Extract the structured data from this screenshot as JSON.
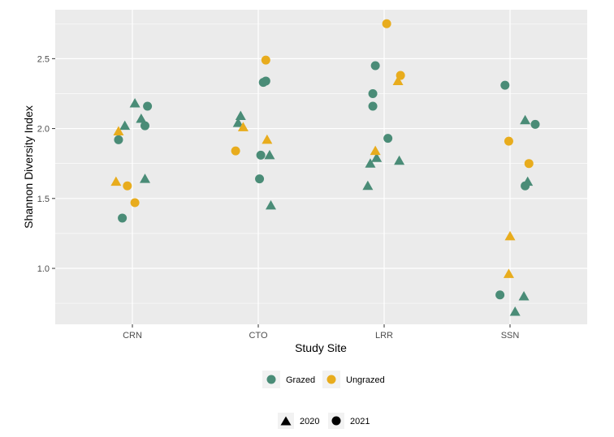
{
  "chart_data": {
    "type": "scatter",
    "title": "",
    "xlabel": "Study Site",
    "ylabel": "Shannon Diversity Index",
    "categories": [
      "CRN",
      "CTO",
      "LRR",
      "SSN"
    ],
    "ylim": [
      0.6,
      2.85
    ],
    "yticks": [
      "1.0",
      "1.5",
      "2.0",
      "2.5"
    ],
    "ytick_values": [
      1.0,
      1.5,
      2.0,
      2.5
    ],
    "grid": true,
    "legend": {
      "placement": "bottom",
      "color_entries": [
        {
          "label": "Grazed",
          "color": "#4a8c77"
        },
        {
          "label": "Ungrazed",
          "color": "#e8ac1d"
        }
      ],
      "shape_entries": [
        {
          "label": "2020",
          "shape": "triangle"
        },
        {
          "label": "2021",
          "shape": "circle"
        }
      ]
    },
    "series": [
      {
        "name": "Grazed",
        "year": "2020",
        "shape": "triangle",
        "color": "#4a8c77",
        "points": [
          {
            "site": "CRN",
            "jitter": 0.02,
            "y": 2.18
          },
          {
            "site": "CRN",
            "jitter": -0.06,
            "y": 2.02
          },
          {
            "site": "CRN",
            "jitter": 0.07,
            "y": 2.07
          },
          {
            "site": "CRN",
            "jitter": 0.1,
            "y": 1.64
          },
          {
            "site": "CTO",
            "jitter": -0.14,
            "y": 2.09
          },
          {
            "site": "CTO",
            "jitter": -0.16,
            "y": 2.04
          },
          {
            "site": "CTO",
            "jitter": 0.09,
            "y": 1.81
          },
          {
            "site": "CTO",
            "jitter": 0.1,
            "y": 1.45
          },
          {
            "site": "LRR",
            "jitter": -0.06,
            "y": 1.79
          },
          {
            "site": "LRR",
            "jitter": -0.11,
            "y": 1.75
          },
          {
            "site": "LRR",
            "jitter": -0.13,
            "y": 1.59
          },
          {
            "site": "LRR",
            "jitter": 0.12,
            "y": 1.77
          },
          {
            "site": "SSN",
            "jitter": 0.12,
            "y": 2.06
          },
          {
            "site": "SSN",
            "jitter": 0.14,
            "y": 1.62
          },
          {
            "site": "SSN",
            "jitter": 0.11,
            "y": 0.8
          },
          {
            "site": "SSN",
            "jitter": 0.04,
            "y": 0.69
          }
        ]
      },
      {
        "name": "Grazed",
        "year": "2021",
        "shape": "circle",
        "color": "#4a8c77",
        "points": [
          {
            "site": "CRN",
            "jitter": -0.11,
            "y": 1.92
          },
          {
            "site": "CRN",
            "jitter": 0.12,
            "y": 2.16
          },
          {
            "site": "CRN",
            "jitter": 0.1,
            "y": 2.02
          },
          {
            "site": "CRN",
            "jitter": -0.08,
            "y": 1.36
          },
          {
            "site": "CTO",
            "jitter": 0.04,
            "y": 2.33
          },
          {
            "site": "CTO",
            "jitter": 0.06,
            "y": 2.34
          },
          {
            "site": "CTO",
            "jitter": 0.02,
            "y": 1.81
          },
          {
            "site": "CTO",
            "jitter": 0.01,
            "y": 1.64
          },
          {
            "site": "LRR",
            "jitter": -0.07,
            "y": 2.45
          },
          {
            "site": "LRR",
            "jitter": -0.09,
            "y": 2.25
          },
          {
            "site": "LRR",
            "jitter": -0.09,
            "y": 2.16
          },
          {
            "site": "LRR",
            "jitter": 0.03,
            "y": 1.93
          },
          {
            "site": "SSN",
            "jitter": -0.04,
            "y": 2.31
          },
          {
            "site": "SSN",
            "jitter": 0.2,
            "y": 2.03
          },
          {
            "site": "SSN",
            "jitter": 0.12,
            "y": 1.59
          },
          {
            "site": "SSN",
            "jitter": -0.08,
            "y": 0.81
          }
        ]
      },
      {
        "name": "Ungrazed",
        "year": "2020",
        "shape": "triangle",
        "color": "#e8ac1d",
        "points": [
          {
            "site": "CRN",
            "jitter": -0.11,
            "y": 1.98
          },
          {
            "site": "CRN",
            "jitter": -0.13,
            "y": 1.62
          },
          {
            "site": "CTO",
            "jitter": -0.12,
            "y": 2.01
          },
          {
            "site": "CTO",
            "jitter": 0.07,
            "y": 1.92
          },
          {
            "site": "LRR",
            "jitter": -0.07,
            "y": 1.84
          },
          {
            "site": "LRR",
            "jitter": 0.11,
            "y": 2.34
          },
          {
            "site": "SSN",
            "jitter": 0.0,
            "y": 1.23
          },
          {
            "site": "SSN",
            "jitter": -0.01,
            "y": 0.96
          }
        ]
      },
      {
        "name": "Ungrazed",
        "year": "2021",
        "shape": "circle",
        "color": "#e8ac1d",
        "points": [
          {
            "site": "CRN",
            "jitter": -0.04,
            "y": 1.59
          },
          {
            "site": "CRN",
            "jitter": 0.02,
            "y": 1.47
          },
          {
            "site": "CTO",
            "jitter": 0.06,
            "y": 2.49
          },
          {
            "site": "CTO",
            "jitter": -0.18,
            "y": 1.84
          },
          {
            "site": "LRR",
            "jitter": 0.02,
            "y": 2.75
          },
          {
            "site": "LRR",
            "jitter": 0.13,
            "y": 2.38
          },
          {
            "site": "SSN",
            "jitter": -0.01,
            "y": 1.91
          },
          {
            "site": "SSN",
            "jitter": 0.15,
            "y": 1.75
          }
        ]
      }
    ]
  },
  "theme": {
    "panel_bg": "#ebebeb",
    "grid_major": "#ffffff",
    "legend_key_bg": "#f2f2f2"
  }
}
